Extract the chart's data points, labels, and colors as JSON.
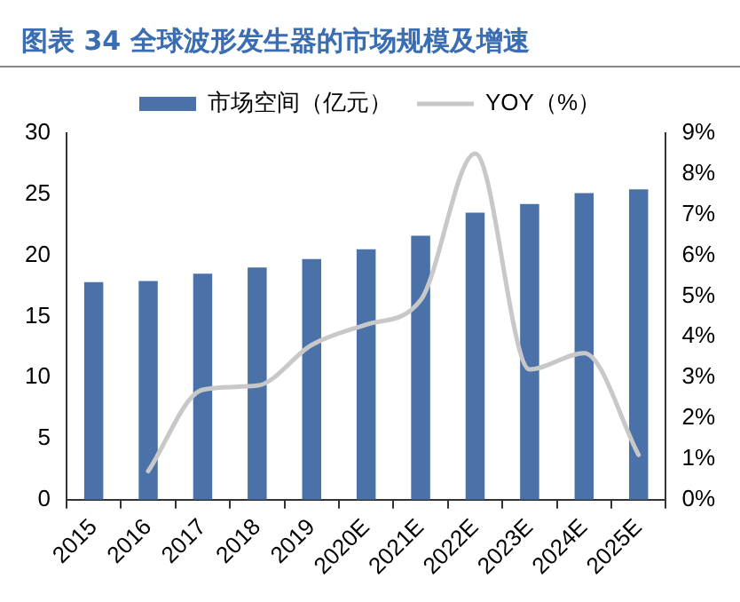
{
  "chart_data": {
    "type": "bar",
    "title": "图表 34 全球波形发生器的市场规模及增速",
    "categories": [
      "2015",
      "2016",
      "2017",
      "2018",
      "2019",
      "2020E",
      "2021E",
      "2022E",
      "2023E",
      "2024E",
      "2025E"
    ],
    "series": [
      {
        "name": "市场空间（亿元）",
        "color": "#4a72a8",
        "values": [
          17.8,
          17.9,
          18.5,
          19.0,
          19.7,
          20.5,
          21.6,
          23.5,
          24.2,
          25.1,
          25.4
        ]
      },
      {
        "name": "YOY（%）",
        "type": "line",
        "axis": "y2",
        "color": "#c8c8c8",
        "values": [
          null,
          0.7,
          2.7,
          2.8,
          3.8,
          4.3,
          4.9,
          8.5,
          3.2,
          3.6,
          1.1
        ]
      }
    ],
    "ylim": [
      0,
      30
    ],
    "yticks": [
      0,
      5,
      10,
      15,
      20,
      25,
      30
    ],
    "y2lim": [
      0,
      9
    ],
    "y2ticks": [
      {
        "value": 0,
        "label": "0%"
      },
      {
        "value": 1,
        "label": "1%"
      },
      {
        "value": 2,
        "label": "2%"
      },
      {
        "value": 3,
        "label": "3%"
      },
      {
        "value": 4,
        "label": "4%"
      },
      {
        "value": 5,
        "label": "5%"
      },
      {
        "value": 6,
        "label": "6%"
      },
      {
        "value": 7,
        "label": "7%"
      },
      {
        "value": 8,
        "label": "8%"
      },
      {
        "value": 9,
        "label": "9%"
      }
    ],
    "legend": "top",
    "grid": false,
    "marker": "none"
  }
}
